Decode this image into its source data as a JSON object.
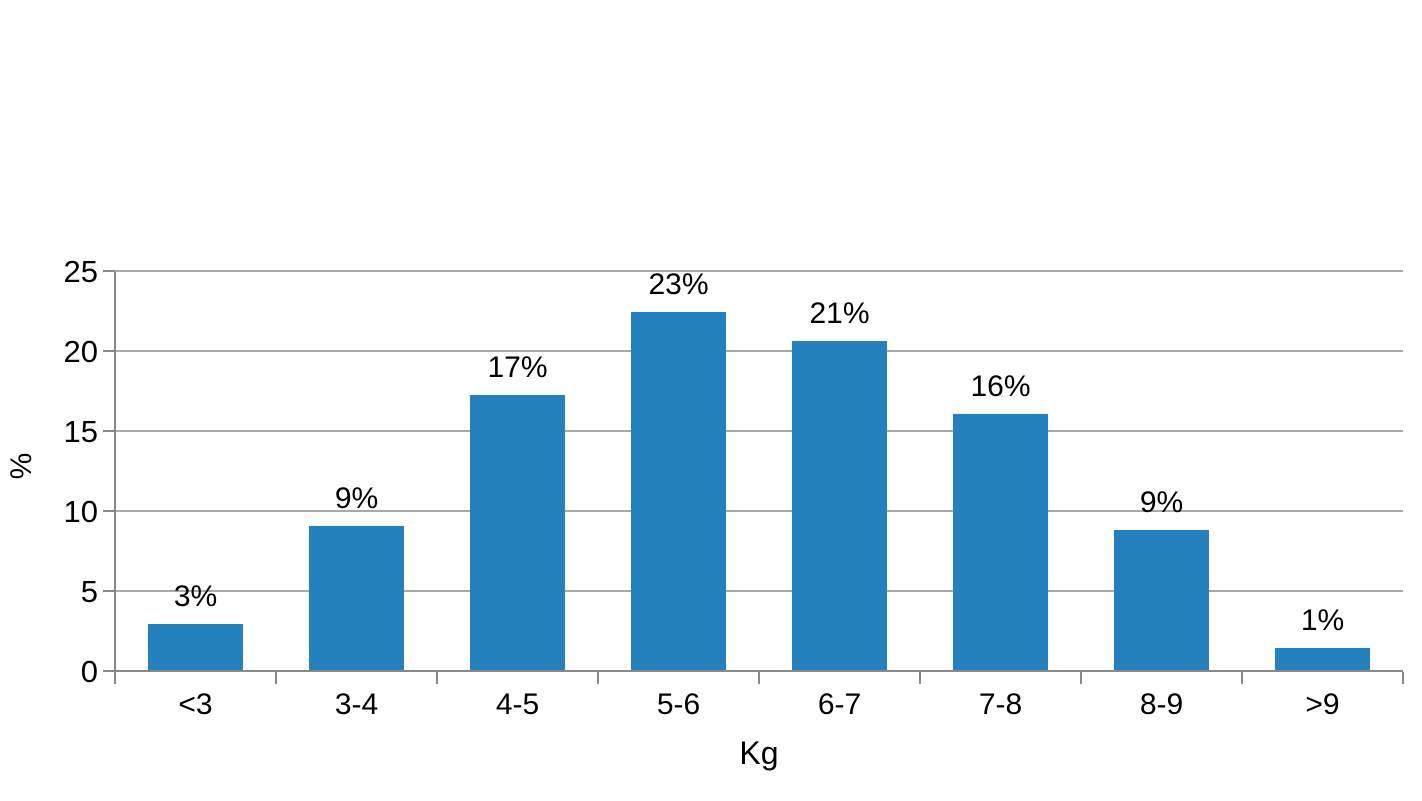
{
  "chart_data": {
    "type": "bar",
    "title": "",
    "categories": [
      "<3",
      "3-4",
      "4-5",
      "5-6",
      "6-7",
      "7-8",
      "8-9",
      ">9"
    ],
    "values": [
      3,
      9,
      17,
      23,
      21,
      16,
      9,
      1
    ],
    "bar_labels": [
      "3%",
      "9%",
      "17%",
      "23%",
      "21%",
      "16%",
      "9%",
      "1%"
    ],
    "drawn_values": [
      3.0,
      9.1,
      17.3,
      22.5,
      20.7,
      16.1,
      8.9,
      1.5
    ],
    "xlabel": "Kg",
    "ylabel": "%",
    "ylim": [
      0,
      25
    ],
    "yticks": [
      0,
      5,
      10,
      15,
      20,
      25
    ],
    "grid": "horizontal",
    "legend_position": "none",
    "colors": {
      "bar": "#2580BE",
      "gridline": "#A8A8A8",
      "axis": "#888888",
      "text": "#000000",
      "background": "#FFFFFF"
    }
  }
}
